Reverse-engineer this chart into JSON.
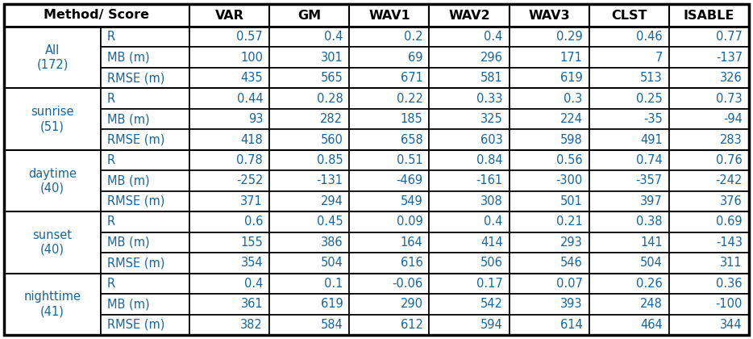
{
  "col_headers": [
    "Method/ Score",
    "VAR",
    "GM",
    "WAV1",
    "WAV2",
    "WAV3",
    "CLST",
    "ISABLE"
  ],
  "row_groups": [
    {
      "label": "All\n(172)",
      "rows": [
        {
          "score": "R",
          "values": [
            "0.57",
            "0.4",
            "0.2",
            "0.4",
            "0.29",
            "0.46",
            "0.77"
          ]
        },
        {
          "score": "MB (m)",
          "values": [
            "100",
            "301",
            "69",
            "296",
            "171",
            "7",
            "-137"
          ]
        },
        {
          "score": "RMSE (m)",
          "values": [
            "435",
            "565",
            "671",
            "581",
            "619",
            "513",
            "326"
          ]
        }
      ]
    },
    {
      "label": "sunrise\n(51)",
      "rows": [
        {
          "score": "R",
          "values": [
            "0.44",
            "0.28",
            "0.22",
            "0.33",
            "0.3",
            "0.25",
            "0.73"
          ]
        },
        {
          "score": "MB (m)",
          "values": [
            "93",
            "282",
            "185",
            "325",
            "224",
            "-35",
            "-94"
          ]
        },
        {
          "score": "RMSE (m)",
          "values": [
            "418",
            "560",
            "658",
            "603",
            "598",
            "491",
            "283"
          ]
        }
      ]
    },
    {
      "label": "daytime\n(40)",
      "rows": [
        {
          "score": "R",
          "values": [
            "0.78",
            "0.85",
            "0.51",
            "0.84",
            "0.56",
            "0.74",
            "0.76"
          ]
        },
        {
          "score": "MB (m)",
          "values": [
            "-252",
            "-131",
            "-469",
            "-161",
            "-300",
            "-357",
            "-242"
          ]
        },
        {
          "score": "RMSE (m)",
          "values": [
            "371",
            "294",
            "549",
            "308",
            "501",
            "397",
            "376"
          ]
        }
      ]
    },
    {
      "label": "sunset\n(40)",
      "rows": [
        {
          "score": "R",
          "values": [
            "0.6",
            "0.45",
            "0.09",
            "0.4",
            "0.21",
            "0.38",
            "0.69"
          ]
        },
        {
          "score": "MB (m)",
          "values": [
            "155",
            "386",
            "164",
            "414",
            "293",
            "141",
            "-143"
          ]
        },
        {
          "score": "RMSE (m)",
          "values": [
            "354",
            "504",
            "616",
            "506",
            "546",
            "504",
            "311"
          ]
        }
      ]
    },
    {
      "label": "nighttime\n(41)",
      "rows": [
        {
          "score": "R",
          "values": [
            "0.4",
            "0.1",
            "-0.06",
            "0.17",
            "0.07",
            "0.26",
            "0.36"
          ]
        },
        {
          "score": "MB (m)",
          "values": [
            "361",
            "619",
            "290",
            "542",
            "393",
            "248",
            "-100"
          ]
        },
        {
          "score": "RMSE (m)",
          "values": [
            "382",
            "584",
            "612",
            "594",
            "614",
            "464",
            "344"
          ]
        }
      ]
    }
  ],
  "header_text_color": "#000000",
  "cell_text_color": "#1565a0",
  "label_text_color": "#1565a0",
  "score_text_color": "#1565a0",
  "border_color": "#000000",
  "bg_color": "#ffffff",
  "header_fontsize": 11.5,
  "cell_fontsize": 10.5,
  "label_fontsize": 10.5,
  "score_fontsize": 10.5
}
